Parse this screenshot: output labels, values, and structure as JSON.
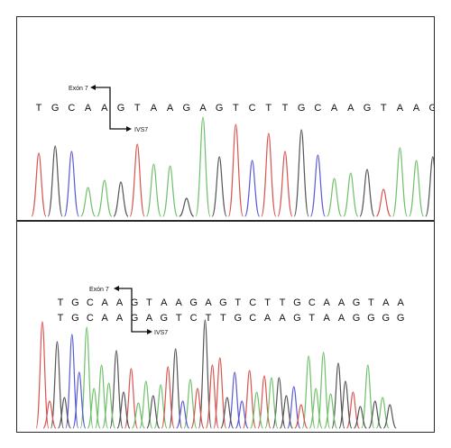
{
  "top": {
    "exon_label": "Exón 7",
    "intron_label": "IVS7",
    "sequence": [
      "T",
      "G",
      "C",
      "A",
      "A",
      "G",
      "T",
      "A",
      "A",
      "G",
      "A",
      "G",
      "T",
      "C",
      "T",
      "T",
      "G",
      "C",
      "A",
      "A",
      "G",
      "T",
      "A",
      "A",
      "G"
    ]
  },
  "bottom": {
    "exon_label": "Exón 7",
    "intron_label": "IVS7",
    "sequence1": [
      "T",
      "G",
      "C",
      "A",
      "A",
      "G",
      "T",
      "A",
      "A",
      "G",
      "A",
      "G",
      "T",
      "C",
      "T",
      "T",
      "G",
      "C",
      "A",
      "A",
      "G",
      "T",
      "A",
      "A"
    ],
    "highlight_indices": [
      6,
      7,
      8,
      9
    ],
    "sequence2": [
      "T",
      "G",
      "C",
      "A",
      "A",
      "G",
      "A",
      "G",
      "T",
      "C",
      "T",
      "T",
      "G",
      "C",
      "A",
      "A",
      "G",
      "T",
      "A",
      "A",
      "G",
      "G",
      "G",
      "G"
    ]
  },
  "colors": {
    "A": "#6fc06a",
    "C": "#5a5ad6",
    "G": "#555555",
    "T": "#d9544f",
    "highlight": "#d63a8c"
  }
}
